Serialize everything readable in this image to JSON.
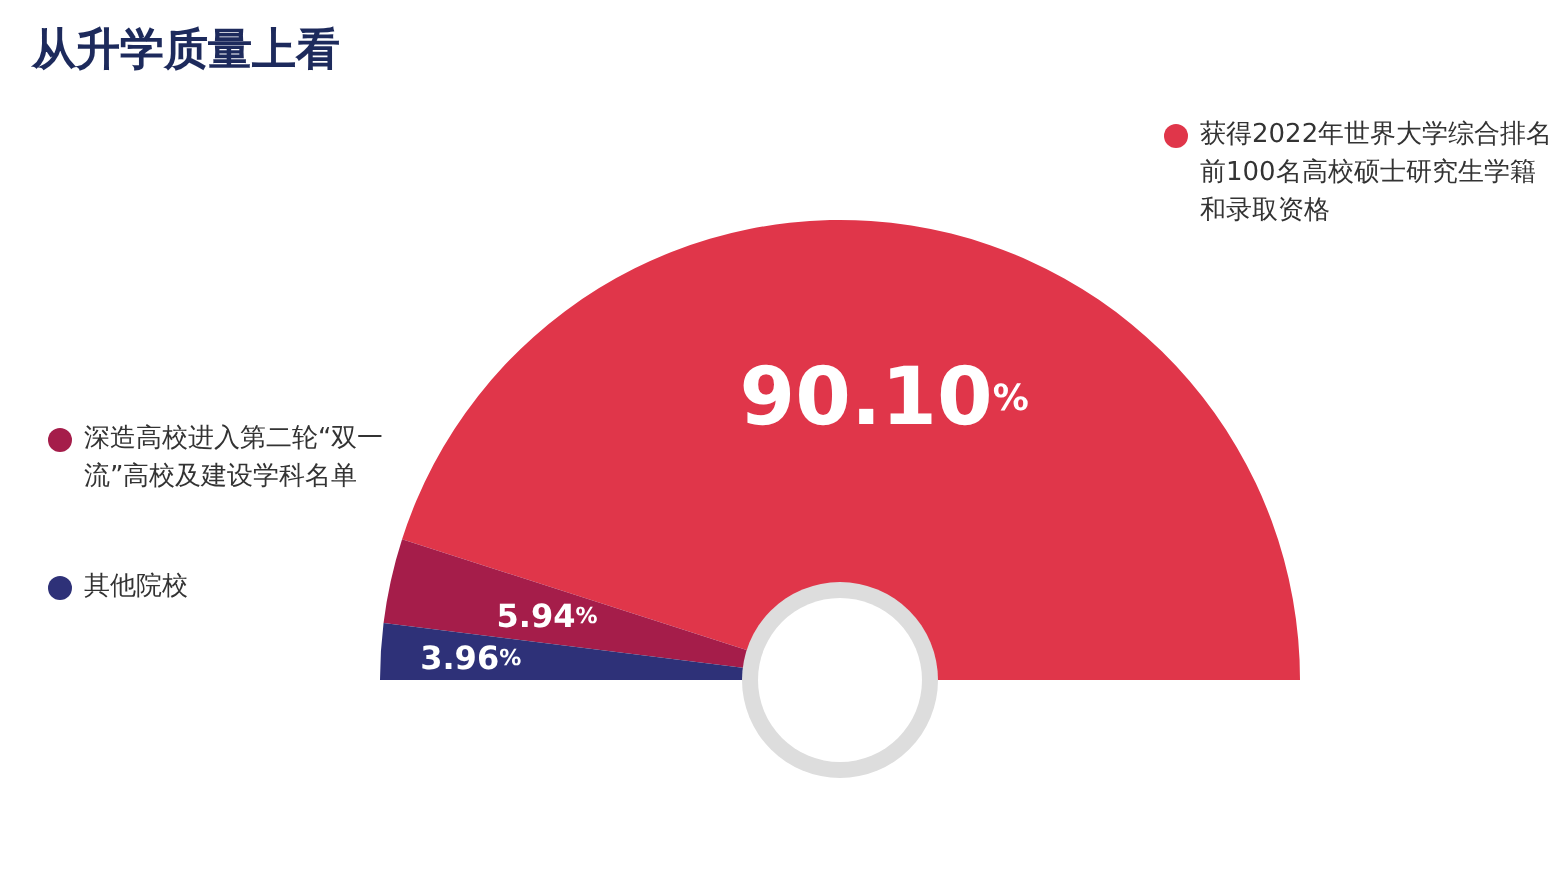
{
  "chart_data": {
    "type": "donut",
    "legend": "left",
    "title": "从升学质量上看",
    "categories": [
      "获得2022年世界大学综合排名前100名高校硕士研究生学籍和录取资格",
      "深造高校进入第二轮“双一流”高校及建设学科名单",
      "其他院校"
    ],
    "values": [
      90.1,
      5.94,
      3.96
    ],
    "colors": [
      "#e0364a",
      "#a51d4a",
      "#2e3178"
    ],
    "value_labels": [
      "90.10%",
      "5.94%",
      "3.96%"
    ]
  }
}
